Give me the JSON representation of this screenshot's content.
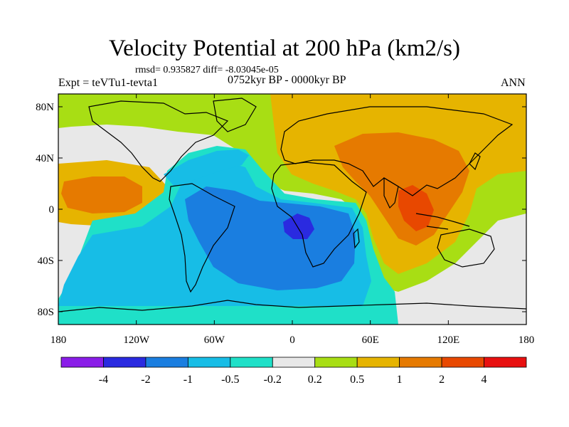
{
  "title": "Velocity Potential at 200 hPa (km2/s)",
  "stats": "rmsd= 0.935827 diff= -8.03045e-05",
  "experiment": "Expt = teVTu1-tevta1",
  "period": "0752kyr BP - 0000kyr BP",
  "season": "ANN",
  "chart_data": {
    "type": "contour-map",
    "variable": "Velocity Potential at 200 hPa",
    "units": "km2/s",
    "x_ticks": [
      "180",
      "120W",
      "60W",
      "0",
      "60E",
      "120E",
      "180"
    ],
    "x_tick_values": [
      -180,
      -120,
      -60,
      0,
      60,
      120,
      180
    ],
    "y_ticks": [
      "80N",
      "40N",
      "0",
      "40S",
      "80S"
    ],
    "y_tick_values": [
      80,
      40,
      0,
      -40,
      -80
    ],
    "xlim": [
      -180,
      180
    ],
    "ylim": [
      -90,
      90
    ],
    "colorbar_labels": [
      "-4",
      "-2",
      "-1",
      "-0.5",
      "-0.2",
      "0.2",
      "0.5",
      "1",
      "2",
      "4"
    ],
    "levels": [
      -4,
      -2,
      -1,
      -0.5,
      -0.2,
      0.2,
      0.5,
      1,
      2,
      4
    ],
    "colors": [
      "#8a1de8",
      "#2a2ae0",
      "#1a7ee0",
      "#17bde6",
      "#1fe0c8",
      "#e8e8e8",
      "#a8de14",
      "#e6b400",
      "#e67a00",
      "#e84800",
      "#e81010"
    ],
    "features": [
      {
        "name": "max-asia-indian-ocean",
        "lon": 95,
        "lat": 5,
        "level": "2"
      },
      {
        "name": "max-central-pacific",
        "lon": -150,
        "lat": 15,
        "level": "1"
      },
      {
        "name": "min-central-africa",
        "lon": 5,
        "lat": -15,
        "level": "-2"
      },
      {
        "name": "min-south-atlantic",
        "lon": -30,
        "lat": -25,
        "level": "-1"
      }
    ]
  }
}
